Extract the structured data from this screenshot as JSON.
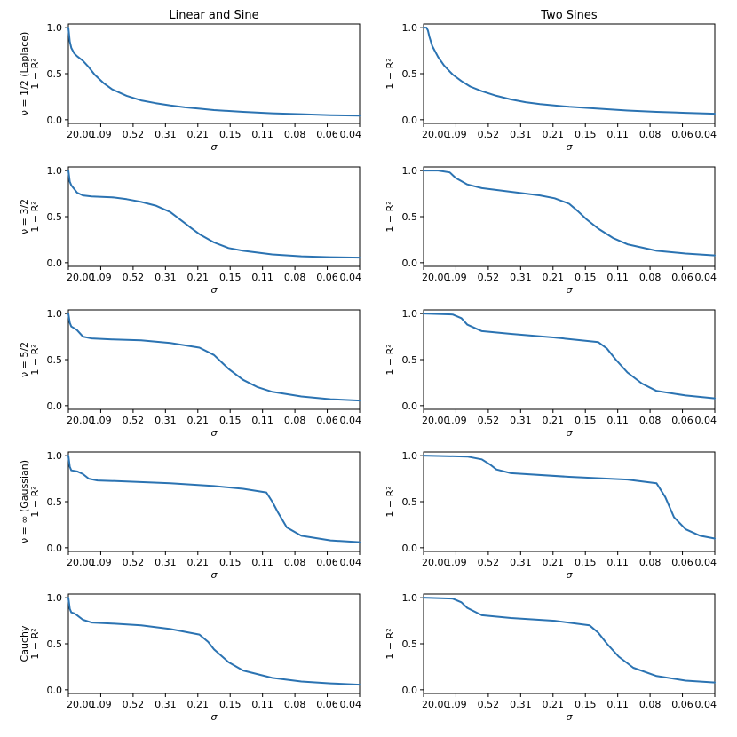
{
  "figure": {
    "columns": [
      "Linear and Sine",
      "Two Sines"
    ],
    "line_color": "#2b73b2"
  },
  "chart_data": [
    {
      "type": "line",
      "panel": "row1-col1",
      "row_label_line1": "ν = 1/2 (Laplace)",
      "ylabel": "1 − R²",
      "xlabel": "σ",
      "x_ticklabels": [
        "20.00",
        "1.09",
        "0.52",
        "0.31",
        "0.21",
        "0.15",
        "0.11",
        "0.08",
        "0.06",
        "0.04"
      ],
      "y_ticks": [
        0.0,
        0.5,
        1.0
      ],
      "ylim": [
        -0.04,
        1.04
      ],
      "xlim": [
        0,
        1
      ],
      "x": [
        0,
        0.005,
        0.01,
        0.02,
        0.03,
        0.05,
        0.07,
        0.09,
        0.12,
        0.15,
        0.2,
        0.25,
        0.3,
        0.35,
        0.4,
        0.45,
        0.5,
        0.6,
        0.7,
        0.8,
        0.9,
        1.0
      ],
      "y": [
        1.0,
        0.85,
        0.78,
        0.72,
        0.69,
        0.64,
        0.57,
        0.49,
        0.4,
        0.33,
        0.26,
        0.21,
        0.18,
        0.155,
        0.135,
        0.12,
        0.105,
        0.085,
        0.07,
        0.06,
        0.05,
        0.045
      ]
    },
    {
      "type": "line",
      "panel": "row1-col2",
      "row_label_line1": "",
      "ylabel": "1 − R²",
      "xlabel": "σ",
      "x_ticklabels": [
        "20.00",
        "1.09",
        "0.52",
        "0.31",
        "0.21",
        "0.15",
        "0.11",
        "0.08",
        "0.06",
        "0.04"
      ],
      "y_ticks": [
        0.0,
        0.5,
        1.0
      ],
      "ylim": [
        -0.04,
        1.04
      ],
      "xlim": [
        0,
        1
      ],
      "x": [
        0,
        0.01,
        0.015,
        0.02,
        0.03,
        0.05,
        0.07,
        0.1,
        0.13,
        0.16,
        0.2,
        0.25,
        0.3,
        0.35,
        0.4,
        0.5,
        0.6,
        0.7,
        0.8,
        0.9,
        1.0
      ],
      "y": [
        1.0,
        1.0,
        0.97,
        0.9,
        0.8,
        0.68,
        0.59,
        0.49,
        0.42,
        0.36,
        0.31,
        0.26,
        0.22,
        0.19,
        0.17,
        0.14,
        0.12,
        0.1,
        0.085,
        0.075,
        0.065
      ]
    },
    {
      "type": "line",
      "panel": "row2-col1",
      "row_label_line1": "ν = 3/2",
      "ylabel": "1 − R²",
      "xlabel": "σ",
      "x_ticklabels": [
        "20.00",
        "1.09",
        "0.52",
        "0.31",
        "0.21",
        "0.15",
        "0.11",
        "0.08",
        "0.06",
        "0.04"
      ],
      "y_ticks": [
        0.0,
        0.5,
        1.0
      ],
      "ylim": [
        -0.04,
        1.04
      ],
      "xlim": [
        0,
        1
      ],
      "x": [
        0,
        0.005,
        0.01,
        0.02,
        0.03,
        0.05,
        0.08,
        0.15,
        0.2,
        0.25,
        0.3,
        0.35,
        0.4,
        0.42,
        0.45,
        0.5,
        0.55,
        0.6,
        0.7,
        0.8,
        0.9,
        1.0
      ],
      "y": [
        1.0,
        0.88,
        0.84,
        0.8,
        0.76,
        0.73,
        0.72,
        0.71,
        0.69,
        0.66,
        0.62,
        0.55,
        0.43,
        0.38,
        0.31,
        0.22,
        0.16,
        0.13,
        0.09,
        0.07,
        0.06,
        0.055
      ]
    },
    {
      "type": "line",
      "panel": "row2-col2",
      "row_label_line1": "",
      "ylabel": "1 − R²",
      "xlabel": "σ",
      "x_ticklabels": [
        "20.00",
        "1.09",
        "0.52",
        "0.31",
        "0.21",
        "0.15",
        "0.11",
        "0.08",
        "0.06",
        "0.04"
      ],
      "y_ticks": [
        0.0,
        0.5,
        1.0
      ],
      "ylim": [
        -0.04,
        1.04
      ],
      "xlim": [
        0,
        1
      ],
      "x": [
        0,
        0.05,
        0.09,
        0.11,
        0.15,
        0.2,
        0.3,
        0.4,
        0.45,
        0.5,
        0.53,
        0.56,
        0.6,
        0.65,
        0.7,
        0.8,
        0.9,
        1.0
      ],
      "y": [
        1.0,
        1.0,
        0.98,
        0.92,
        0.85,
        0.81,
        0.77,
        0.73,
        0.7,
        0.64,
        0.56,
        0.47,
        0.37,
        0.27,
        0.2,
        0.13,
        0.1,
        0.08
      ]
    },
    {
      "type": "line",
      "panel": "row3-col1",
      "row_label_line1": "ν = 5/2",
      "ylabel": "1 − R²",
      "xlabel": "σ",
      "x_ticklabels": [
        "20.00",
        "1.09",
        "0.52",
        "0.31",
        "0.21",
        "0.15",
        "0.11",
        "0.08",
        "0.06",
        "0.04"
      ],
      "y_ticks": [
        0.0,
        0.5,
        1.0
      ],
      "ylim": [
        -0.04,
        1.04
      ],
      "xlim": [
        0,
        1
      ],
      "x": [
        0,
        0.005,
        0.01,
        0.02,
        0.03,
        0.05,
        0.08,
        0.15,
        0.25,
        0.35,
        0.45,
        0.5,
        0.53,
        0.55,
        0.6,
        0.65,
        0.7,
        0.8,
        0.9,
        1.0
      ],
      "y": [
        1.0,
        0.9,
        0.86,
        0.84,
        0.82,
        0.75,
        0.73,
        0.72,
        0.71,
        0.68,
        0.63,
        0.55,
        0.46,
        0.4,
        0.28,
        0.2,
        0.15,
        0.1,
        0.07,
        0.055
      ]
    },
    {
      "type": "line",
      "panel": "row3-col2",
      "row_label_line1": "",
      "ylabel": "1 − R²",
      "xlabel": "σ",
      "x_ticklabels": [
        "20.00",
        "1.09",
        "0.52",
        "0.31",
        "0.21",
        "0.15",
        "0.11",
        "0.08",
        "0.06",
        "0.04"
      ],
      "y_ticks": [
        0.0,
        0.5,
        1.0
      ],
      "ylim": [
        -0.04,
        1.04
      ],
      "xlim": [
        0,
        1
      ],
      "x": [
        0,
        0.1,
        0.13,
        0.15,
        0.2,
        0.3,
        0.45,
        0.6,
        0.63,
        0.66,
        0.7,
        0.75,
        0.8,
        0.9,
        1.0
      ],
      "y": [
        1.0,
        0.99,
        0.95,
        0.88,
        0.81,
        0.78,
        0.74,
        0.69,
        0.62,
        0.5,
        0.36,
        0.24,
        0.16,
        0.11,
        0.08
      ]
    },
    {
      "type": "line",
      "panel": "row4-col1",
      "row_label_line1": "ν = ∞ (Gaussian)",
      "ylabel": "1 − R²",
      "xlabel": "σ",
      "x_ticklabels": [
        "20.00",
        "1.09",
        "0.52",
        "0.31",
        "0.21",
        "0.15",
        "0.11",
        "0.08",
        "0.06",
        "0.04"
      ],
      "y_ticks": [
        0.0,
        0.5,
        1.0
      ],
      "ylim": [
        -0.04,
        1.04
      ],
      "xlim": [
        0,
        1
      ],
      "x": [
        0,
        0.005,
        0.01,
        0.03,
        0.05,
        0.07,
        0.1,
        0.2,
        0.35,
        0.5,
        0.6,
        0.68,
        0.7,
        0.72,
        0.75,
        0.8,
        0.9,
        1.0
      ],
      "y": [
        1.0,
        0.88,
        0.84,
        0.83,
        0.8,
        0.75,
        0.73,
        0.72,
        0.7,
        0.67,
        0.64,
        0.6,
        0.5,
        0.38,
        0.22,
        0.13,
        0.08,
        0.06
      ]
    },
    {
      "type": "line",
      "panel": "row4-col2",
      "row_label_line1": "",
      "ylabel": "1 − R²",
      "xlabel": "σ",
      "x_ticklabels": [
        "20.00",
        "1.09",
        "0.52",
        "0.31",
        "0.21",
        "0.15",
        "0.11",
        "0.08",
        "0.06",
        "0.04"
      ],
      "y_ticks": [
        0.0,
        0.5,
        1.0
      ],
      "ylim": [
        -0.04,
        1.04
      ],
      "xlim": [
        0,
        1
      ],
      "x": [
        0,
        0.15,
        0.2,
        0.23,
        0.25,
        0.3,
        0.5,
        0.7,
        0.8,
        0.83,
        0.86,
        0.9,
        0.95,
        1.0
      ],
      "y": [
        1.0,
        0.99,
        0.96,
        0.9,
        0.85,
        0.81,
        0.77,
        0.74,
        0.7,
        0.55,
        0.33,
        0.2,
        0.13,
        0.1
      ]
    },
    {
      "type": "line",
      "panel": "row5-col1",
      "row_label_line1": "Cauchy",
      "ylabel": "1 − R²",
      "xlabel": "σ",
      "x_ticklabels": [
        "20.00",
        "1.09",
        "0.52",
        "0.31",
        "0.21",
        "0.15",
        "0.11",
        "0.08",
        "0.06",
        "0.04"
      ],
      "y_ticks": [
        0.0,
        0.5,
        1.0
      ],
      "ylim": [
        -0.04,
        1.04
      ],
      "xlim": [
        0,
        1
      ],
      "x": [
        0,
        0.005,
        0.01,
        0.02,
        0.03,
        0.05,
        0.08,
        0.15,
        0.25,
        0.35,
        0.45,
        0.48,
        0.5,
        0.55,
        0.6,
        0.7,
        0.8,
        0.9,
        1.0
      ],
      "y": [
        1.0,
        0.88,
        0.84,
        0.83,
        0.81,
        0.76,
        0.73,
        0.72,
        0.7,
        0.66,
        0.6,
        0.52,
        0.44,
        0.3,
        0.21,
        0.13,
        0.09,
        0.07,
        0.055
      ]
    },
    {
      "type": "line",
      "panel": "row5-col2",
      "row_label_line1": "",
      "ylabel": "1 − R²",
      "xlabel": "σ",
      "x_ticklabels": [
        "20.00",
        "1.09",
        "0.52",
        "0.31",
        "0.21",
        "0.15",
        "0.11",
        "0.08",
        "0.06",
        "0.04"
      ],
      "y_ticks": [
        0.0,
        0.5,
        1.0
      ],
      "ylim": [
        -0.04,
        1.04
      ],
      "xlim": [
        0,
        1
      ],
      "x": [
        0,
        0.1,
        0.13,
        0.15,
        0.2,
        0.3,
        0.45,
        0.57,
        0.6,
        0.63,
        0.67,
        0.72,
        0.8,
        0.9,
        1.0
      ],
      "y": [
        1.0,
        0.99,
        0.95,
        0.89,
        0.81,
        0.78,
        0.75,
        0.7,
        0.62,
        0.5,
        0.36,
        0.24,
        0.15,
        0.1,
        0.08
      ]
    }
  ]
}
